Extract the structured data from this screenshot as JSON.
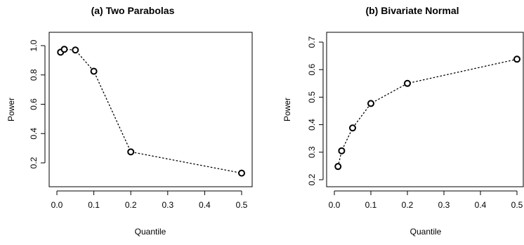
{
  "chart_data": [
    {
      "type": "line",
      "title": "(a) Two Parabolas",
      "xlabel": "Quantile",
      "ylabel": "Power",
      "xlim": [
        0.0,
        0.5
      ],
      "ylim": [
        0.1,
        1.05
      ],
      "xticks": [
        0.0,
        0.1,
        0.2,
        0.3,
        0.4,
        0.5
      ],
      "xtick_labels": [
        "0.0",
        "0.1",
        "0.2",
        "0.3",
        "0.4",
        "0.5"
      ],
      "yticks": [
        0.2,
        0.4,
        0.6,
        0.8,
        1.0
      ],
      "ytick_labels": [
        "0.2",
        "0.4",
        "0.6",
        "0.8",
        "1.0"
      ],
      "grid": false,
      "series": [
        {
          "x": [
            0.01,
            0.02,
            0.05,
            0.1,
            0.2,
            0.5
          ],
          "y": [
            0.955,
            0.975,
            0.97,
            0.825,
            0.275,
            0.13
          ],
          "line_style": "dotted",
          "marker": "open-circle",
          "color": "#000000"
        }
      ]
    },
    {
      "type": "line",
      "title": "(b) Bivariate Normal",
      "xlabel": "Quantile",
      "ylabel": "Power",
      "xlim": [
        0.0,
        0.5
      ],
      "ylim": [
        0.2,
        0.7
      ],
      "xticks": [
        0.0,
        0.1,
        0.2,
        0.3,
        0.4,
        0.5
      ],
      "xtick_labels": [
        "0.0",
        "0.1",
        "0.2",
        "0.3",
        "0.4",
        "0.5"
      ],
      "yticks": [
        0.2,
        0.3,
        0.4,
        0.5,
        0.6,
        0.7
      ],
      "ytick_labels": [
        "0.2",
        "0.3",
        "0.4",
        "0.5",
        "0.6",
        "0.7"
      ],
      "grid": false,
      "series": [
        {
          "x": [
            0.01,
            0.02,
            0.05,
            0.1,
            0.2,
            0.5
          ],
          "y": [
            0.248,
            0.305,
            0.388,
            0.477,
            0.55,
            0.638
          ],
          "line_style": "dotted",
          "marker": "open-circle",
          "color": "#000000"
        }
      ]
    }
  ]
}
